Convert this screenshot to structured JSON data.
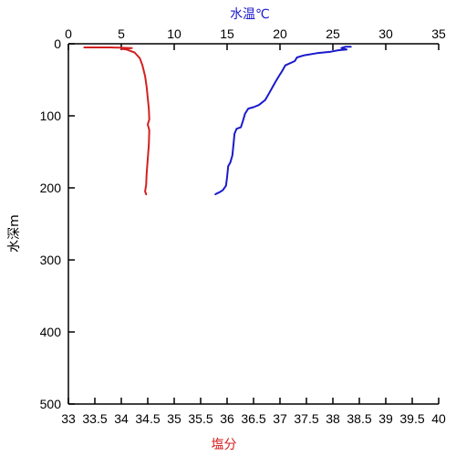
{
  "chart_data": {
    "type": "line",
    "colors": {
      "temperature": "#1a1acc",
      "salinity": "#d42020",
      "axis": "#000000"
    },
    "temperature_axis": {
      "label": "水温℃",
      "range": [
        0,
        35
      ],
      "ticks": [
        "0",
        "5",
        "10",
        "15",
        "20",
        "25",
        "30",
        "35"
      ]
    },
    "salinity_axis": {
      "label": "塩分",
      "range": [
        33,
        40
      ],
      "ticks": [
        "33",
        "33.5",
        "34",
        "34.5",
        "35",
        "35.5",
        "36",
        "36.5",
        "37",
        "37.5",
        "38",
        "38.5",
        "39",
        "39.5",
        "40"
      ]
    },
    "depth_axis": {
      "label": "水深m",
      "range": [
        0,
        500
      ],
      "inverted": true,
      "ticks": [
        "0",
        "100",
        "200",
        "300",
        "400",
        "500"
      ]
    },
    "series": [
      {
        "key": "temperature",
        "axis": "temperature",
        "points": [
          [
            26.7,
            4
          ],
          [
            26.2,
            4
          ],
          [
            25.8,
            6
          ],
          [
            26.3,
            8
          ],
          [
            25.5,
            9
          ],
          [
            24.8,
            11
          ],
          [
            23.5,
            13
          ],
          [
            22.3,
            16
          ],
          [
            21.6,
            19
          ],
          [
            21.4,
            24
          ],
          [
            20.5,
            30
          ],
          [
            20.2,
            38
          ],
          [
            19.9,
            45
          ],
          [
            19.6,
            52
          ],
          [
            19.3,
            60
          ],
          [
            19.0,
            68
          ],
          [
            18.6,
            78
          ],
          [
            18.0,
            85
          ],
          [
            17.5,
            88
          ],
          [
            17.0,
            90
          ],
          [
            16.7,
            97
          ],
          [
            16.5,
            107
          ],
          [
            16.3,
            116
          ],
          [
            15.9,
            118
          ],
          [
            15.7,
            125
          ],
          [
            15.6,
            140
          ],
          [
            15.5,
            155
          ],
          [
            15.3,
            165
          ],
          [
            15.1,
            170
          ],
          [
            15.0,
            185
          ],
          [
            14.9,
            197
          ],
          [
            14.6,
            203
          ],
          [
            14.3,
            206
          ],
          [
            14.0,
            208
          ],
          [
            13.9,
            209
          ]
        ]
      },
      {
        "key": "salinity",
        "axis": "salinity",
        "points": [
          [
            33.3,
            5
          ],
          [
            33.8,
            5
          ],
          [
            34.2,
            6
          ],
          [
            34.0,
            7
          ],
          [
            34.1,
            8
          ],
          [
            34.25,
            12
          ],
          [
            34.35,
            20
          ],
          [
            34.4,
            30
          ],
          [
            34.45,
            45
          ],
          [
            34.48,
            60
          ],
          [
            34.5,
            75
          ],
          [
            34.52,
            90
          ],
          [
            34.53,
            105
          ],
          [
            34.5,
            112
          ],
          [
            34.53,
            120
          ],
          [
            34.52,
            140
          ],
          [
            34.5,
            160
          ],
          [
            34.48,
            180
          ],
          [
            34.47,
            195
          ],
          [
            34.45,
            205
          ],
          [
            34.47,
            209
          ]
        ]
      }
    ]
  }
}
